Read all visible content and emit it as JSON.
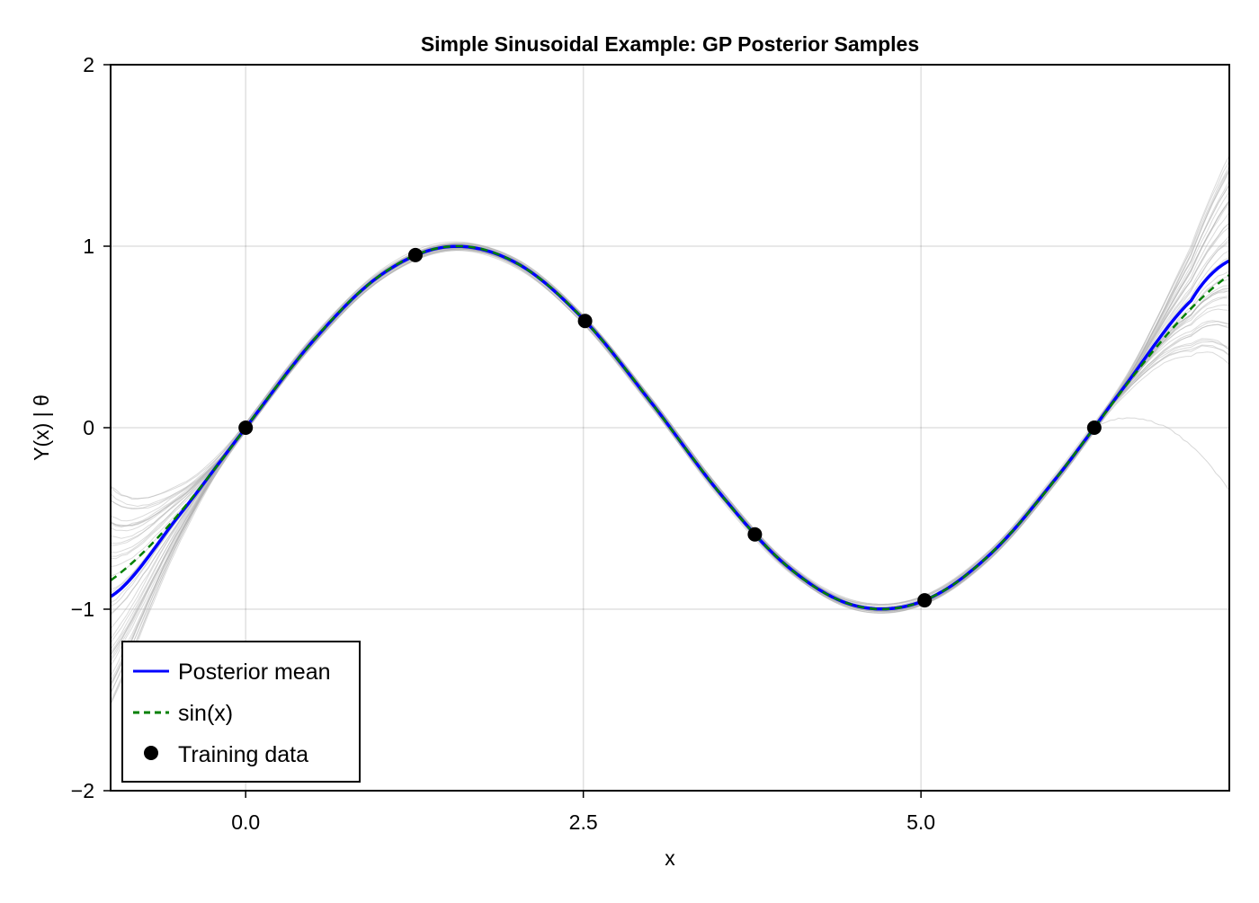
{
  "chart_data": {
    "type": "line",
    "title": "Simple Sinusoidal Example: GP Posterior Samples",
    "xlabel": "x",
    "ylabel": "Y(x) | θ",
    "xlim": [
      -1,
      7.283
    ],
    "ylim": [
      -2,
      2
    ],
    "xticks": [
      0,
      2.5,
      5
    ],
    "xtick_labels": [
      "0.0",
      "2.5",
      "5.0"
    ],
    "yticks": [
      -2,
      -1,
      0,
      1,
      2
    ],
    "ytick_labels": [
      "−2",
      "−1",
      "0",
      "1",
      "2"
    ],
    "grid": true,
    "legend_position": "bottom-left",
    "series": [
      {
        "name": "Posterior mean",
        "color": "#0000ff",
        "style": "solid",
        "x": [
          -1,
          -0.5,
          0,
          0.5,
          1,
          1.5,
          2,
          2.5,
          3,
          3.5,
          4,
          4.5,
          5,
          5.5,
          6,
          6.5,
          7,
          7.283
        ],
        "y": [
          -0.93,
          -0.49,
          0,
          0.479,
          0.841,
          0.997,
          0.909,
          0.598,
          0.141,
          -0.351,
          -0.757,
          -0.978,
          -0.959,
          -0.706,
          -0.279,
          0.22,
          0.7,
          0.92
        ]
      },
      {
        "name": "sin(x)",
        "color": "#008000",
        "style": "dashed",
        "function": "sin(x)"
      },
      {
        "name": "Training data",
        "color": "#000000",
        "style": "markers",
        "x": [
          0,
          1.257,
          2.513,
          3.77,
          5.027,
          6.283
        ],
        "y": [
          0,
          0.951,
          0.588,
          -0.588,
          -0.951,
          0
        ]
      }
    ],
    "posterior_samples_color": "#b0b0b0"
  }
}
